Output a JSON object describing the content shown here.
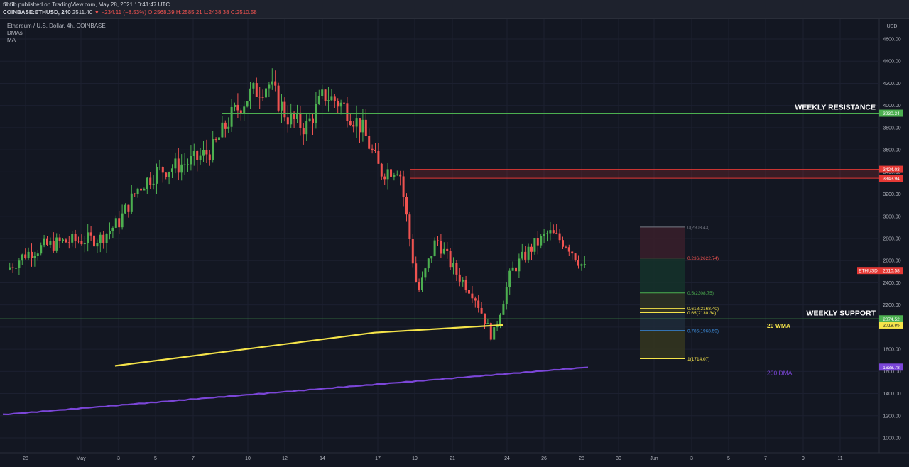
{
  "header": {
    "author": "fibfib",
    "published": "published on TradingView.com, May 28, 2021 10:41:47 UTC",
    "symbol": "COINBASE:ETHUSD, 240",
    "last": "2511.40",
    "change": "−234.11 (−8.53%)",
    "ohlc": [
      "O:2568.39",
      "H:2585.21",
      "L:2438.38",
      "C:2510.58"
    ]
  },
  "legend": {
    "title": "Ethereum / U.S. Dollar, 4h, COINBASE",
    "indicator1": "DMAs",
    "indicator2": "MA"
  },
  "price_axis": {
    "currency": "USD",
    "ticks": [
      "4600.00",
      "4400.00",
      "4200.00",
      "4000.00",
      "3800.00",
      "3600.00",
      "3400.00",
      "3200.00",
      "3000.00",
      "2800.00",
      "2600.00",
      "2400.00",
      "2200.00",
      "2000.00",
      "1800.00",
      "1600.00",
      "1400.00",
      "1200.00",
      "1000.00"
    ]
  },
  "time_axis": {
    "ticks": [
      "28",
      "May",
      "3",
      "5",
      "7",
      "10",
      "12",
      "14",
      "17",
      "19",
      "21",
      "24",
      "26",
      "28",
      "30",
      "Jun",
      "3",
      "5",
      "7",
      "9",
      "11"
    ]
  },
  "colors": {
    "background": "#131722",
    "up": "#4caf50",
    "down": "#ef5350",
    "resistance_line": "#4caf50",
    "support_line": "#4caf50",
    "wma20": "#f5e44a",
    "dma200": "#7b46d8",
    "zone": "#e53935"
  },
  "chart_data": {
    "type": "candlestick",
    "title": "Ethereum / U.S. Dollar, 4h, COINBASE",
    "ylim": [
      940,
      4800
    ],
    "price_path": [
      [
        "Apr 27",
        2520
      ],
      [
        "Apr 28",
        2660
      ],
      [
        "Apr 29",
        2730
      ],
      [
        "Apr 30",
        2770
      ],
      [
        "May 2",
        2800
      ],
      [
        "May 3",
        2950
      ],
      [
        "May 4",
        3250
      ],
      [
        "May 5",
        3400
      ],
      [
        "May 6",
        3450
      ],
      [
        "May 7",
        3500
      ],
      [
        "May 8",
        3600
      ],
      [
        "May 9",
        3900
      ],
      [
        "May 10",
        4100
      ],
      [
        "May 11",
        4200
      ],
      [
        "May 12",
        3900
      ],
      [
        "May 13",
        3800
      ],
      [
        "May 14",
        4100
      ],
      [
        "May 15",
        4000
      ],
      [
        "May 16",
        3800
      ],
      [
        "May 17",
        3400
      ],
      [
        "May 18",
        3450
      ],
      [
        "May 19",
        2300
      ],
      [
        "May 20",
        2800
      ],
      [
        "May 21",
        2500
      ],
      [
        "May 22",
        2300
      ],
      [
        "May 23",
        1900
      ],
      [
        "May 24",
        2500
      ],
      [
        "May 25",
        2700
      ],
      [
        "May 26",
        2850
      ],
      [
        "May 27",
        2750
      ],
      [
        "May 28",
        2510
      ]
    ],
    "levels": {
      "weekly_resistance": {
        "label": "WEEKLY RESISTANCE",
        "value": 3930.34,
        "value_label": "3930.34"
      },
      "weekly_support": {
        "label": "WEEKLY SUPPORT",
        "value": 2074.52,
        "value_label": "2074.52"
      },
      "resistance_zone": {
        "top": 3424.03,
        "bottom": 3343.94,
        "top_label": "3424.03",
        "bottom_label": "3343.94"
      },
      "last_price": {
        "label": "ETHUSD",
        "value": 2510.58,
        "value_label": "2510.58"
      }
    },
    "ma": [
      {
        "name": "20 WMA",
        "value_label": "2018.85",
        "points": [
          [
            "May 3",
            1650
          ],
          [
            "May 17",
            1950
          ],
          [
            "May 23",
            2018.85
          ]
        ]
      },
      {
        "name": "200 DMA",
        "value_label": "1638.78",
        "points": [
          [
            "Apr 27",
            1200
          ],
          [
            "May 28",
            1638.78
          ]
        ]
      }
    ],
    "fibonacci": {
      "high": 2903.43,
      "low": 1714.07,
      "levels": [
        {
          "label": "0(2903.43)",
          "value": 2903.43,
          "color": "#787b86"
        },
        {
          "label": "0.236(2622.74)",
          "value": 2622.74,
          "color": "#ef5350"
        },
        {
          "label": "0.5(2308.75)",
          "value": 2308.75,
          "color": "#4caf50"
        },
        {
          "label": "0.618(2168.40)",
          "value": 2168.4,
          "color": "#f5e44a"
        },
        {
          "label": "0.65(2130.34)",
          "value": 2130.34,
          "color": "#f5e44a"
        },
        {
          "label": "0.786(1968.59)",
          "value": 1968.59,
          "color": "#3d8bd9"
        },
        {
          "label": "1(1714.07)",
          "value": 1714.07,
          "color": "#f5e44a"
        }
      ]
    }
  }
}
